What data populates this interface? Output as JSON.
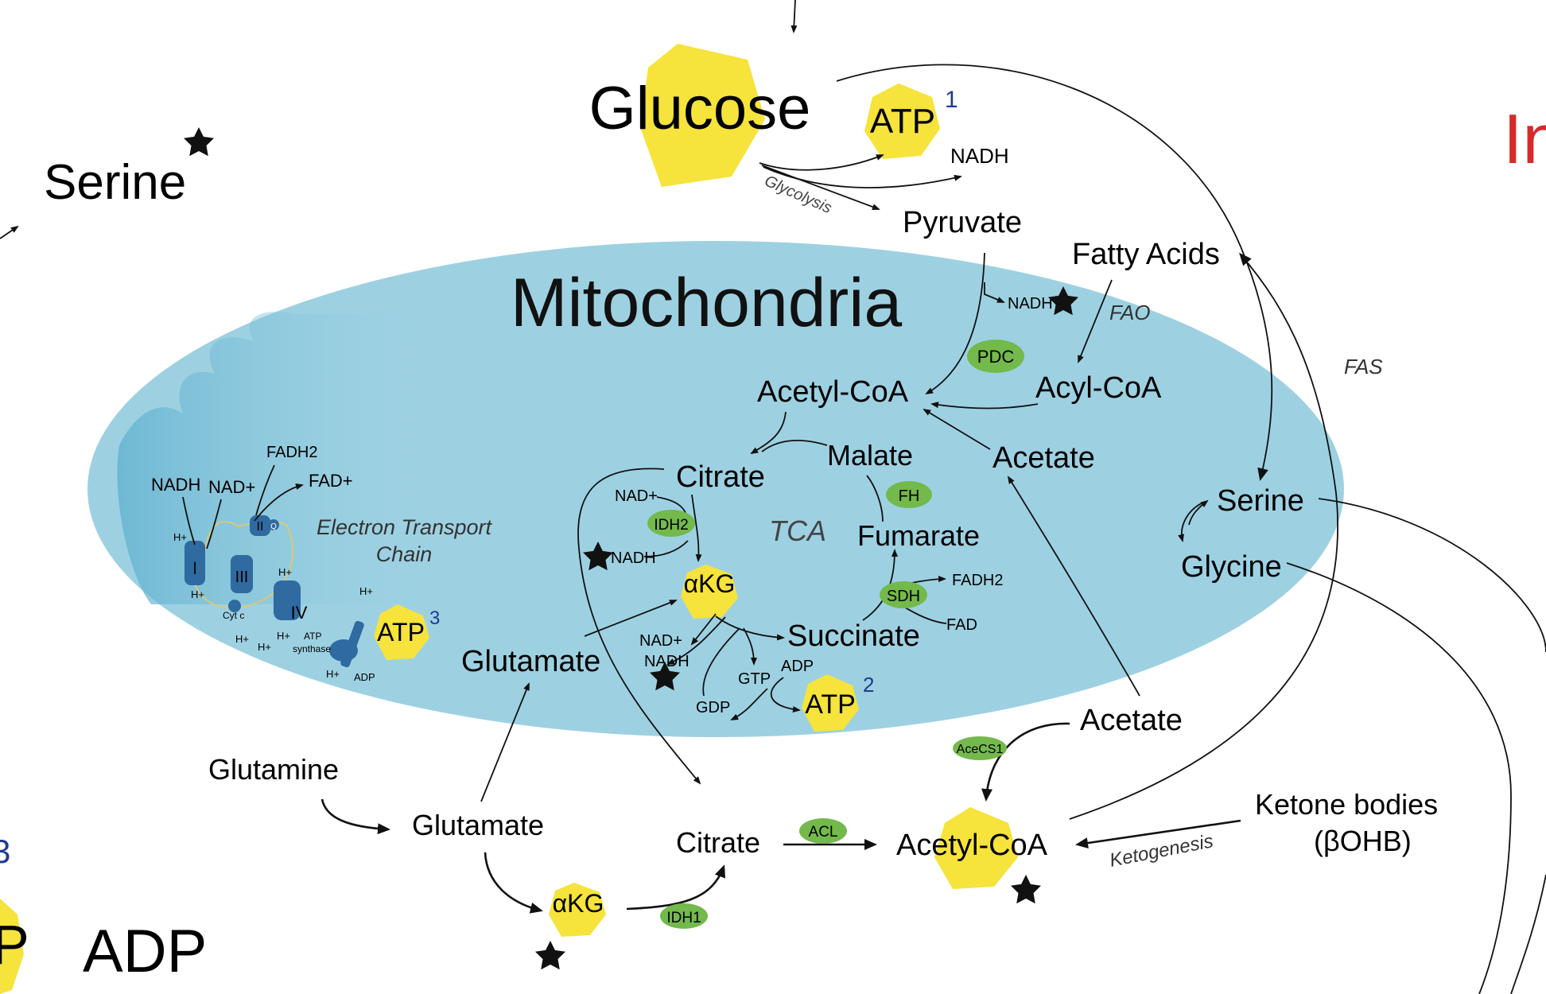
{
  "colors": {
    "mito_fill": "#9dd1e2",
    "enzyme_green": "#73b94b",
    "atp_yellow": "#f6e33b",
    "etc_blue": "#2f6aa0",
    "tag_blue": "#1f3a93",
    "partial_red": "#d62a2a"
  },
  "labels": {
    "mitochondria": "Mitochondria",
    "glucose": "Glucose",
    "atp": "ATP",
    "sup1": "1",
    "sup2": "2",
    "sup3": "3",
    "nadh": "NADH",
    "glycolysis": "Glycolysis",
    "pyruvate": "Pyruvate",
    "serine_left": "Serine",
    "fatty_acids": "Fatty Acids",
    "fao": "FAO",
    "fas": "FAS",
    "pdc": "PDC",
    "acetyl_coa": "Acetyl-CoA",
    "acyl_coa": "Acyl-CoA",
    "acetate": "Acetate",
    "malate": "Malate",
    "citrate": "Citrate",
    "fh": "FH",
    "tca": "TCA",
    "fumarate": "Fumarate",
    "nad_plus": "NAD+",
    "idh2": "IDH2",
    "akg": "αKG",
    "sdh": "SDH",
    "fadh2": "FADH2",
    "fad": "FAD",
    "fad_plus": "FAD+",
    "succinate": "Succinate",
    "glutamate": "Glutamate",
    "gtp": "GTP",
    "gdp": "GDP",
    "adp": "ADP",
    "serine_right": "Serine",
    "glycine": "Glycine",
    "etc_line1": "Electron Transport",
    "etc_line2": "Chain",
    "hplus": "H+",
    "complex_1": "I",
    "complex_2": "II",
    "complex_3": "III",
    "complex_4": "IV",
    "complex_q": "Q",
    "cytc": "Cyt c",
    "atp_synthase_1": "ATP",
    "atp_synthase_2": "synthase",
    "acecs1": "AceCS1",
    "glutamine": "Glutamine",
    "acl": "ACL",
    "idh1": "IDH1",
    "ketone_bodies": "Ketone bodies",
    "bohb": "(βOHB)",
    "ketogenesis": "Ketogenesis",
    "adp_big": "ADP",
    "partial_3": "3",
    "partial_p": "P",
    "partial_in": "In"
  },
  "icons": [
    "star-icon",
    "atp-hexagon-icon",
    "glucose-hexagon-icon",
    "enzyme-ellipse-icon",
    "etc-complex-icon"
  ]
}
